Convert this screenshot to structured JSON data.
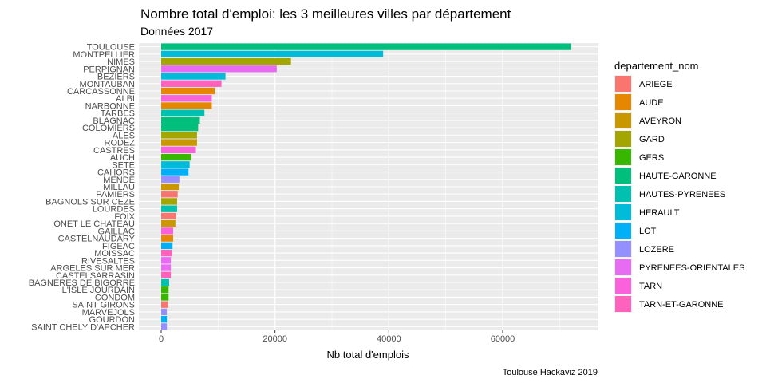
{
  "chart_data": {
    "type": "bar",
    "orientation": "horizontal",
    "title": "Nombre total d'emploi: les 3 meilleures villes par département",
    "subtitle": "Données 2017",
    "xlabel": "Nb total d'emplois",
    "ylabel": "",
    "caption": "Toulouse Hackaviz 2019",
    "xlim": [
      0,
      76000
    ],
    "xticks": [
      0,
      20000,
      40000,
      60000
    ],
    "xtick_labels": [
      "0",
      "20000",
      "40000",
      "60000"
    ],
    "grid": true,
    "legend_position": "right",
    "legend_title": "departement_nom",
    "legend": [
      {
        "name": "ARIEGE",
        "color": "#F8766D"
      },
      {
        "name": "AUDE",
        "color": "#E58700"
      },
      {
        "name": "AVEYRON",
        "color": "#C99800"
      },
      {
        "name": "GARD",
        "color": "#A3A500"
      },
      {
        "name": "GERS",
        "color": "#39B600"
      },
      {
        "name": "HAUTE-GARONNE",
        "color": "#00BF7D"
      },
      {
        "name": "HAUTES-PYRENEES",
        "color": "#00C0AF"
      },
      {
        "name": "HERAULT",
        "color": "#00BCD8"
      },
      {
        "name": "LOT",
        "color": "#00B0F6"
      },
      {
        "name": "LOZERE",
        "color": "#9590FF"
      },
      {
        "name": "PYRENEES-ORIENTALES",
        "color": "#E76BF3"
      },
      {
        "name": "TARN",
        "color": "#FA62DB"
      },
      {
        "name": "TARN-ET-GARONNE",
        "color": "#FF62BC"
      }
    ],
    "bars": [
      {
        "city": "TOULOUSE",
        "dept": "HAUTE-GARONNE",
        "value": 72000
      },
      {
        "city": "MONTPELLIER",
        "dept": "HERAULT",
        "value": 39000
      },
      {
        "city": "NIMES",
        "dept": "GARD",
        "value": 22800
      },
      {
        "city": "PERPIGNAN",
        "dept": "PYRENEES-ORIENTALES",
        "value": 20300
      },
      {
        "city": "BEZIERS",
        "dept": "HERAULT",
        "value": 11300
      },
      {
        "city": "MONTAUBAN",
        "dept": "TARN-ET-GARONNE",
        "value": 10600
      },
      {
        "city": "CARCASSONNE",
        "dept": "AUDE",
        "value": 9400
      },
      {
        "city": "ALBI",
        "dept": "TARN",
        "value": 8900
      },
      {
        "city": "NARBONNE",
        "dept": "AUDE",
        "value": 8900
      },
      {
        "city": "TARBES",
        "dept": "HAUTES-PYRENEES",
        "value": 7600
      },
      {
        "city": "BLAGNAC",
        "dept": "HAUTE-GARONNE",
        "value": 6800
      },
      {
        "city": "COLOMIERS",
        "dept": "HAUTE-GARONNE",
        "value": 6500
      },
      {
        "city": "ALES",
        "dept": "GARD",
        "value": 6300
      },
      {
        "city": "RODEZ",
        "dept": "AVEYRON",
        "value": 6300
      },
      {
        "city": "CASTRES",
        "dept": "TARN",
        "value": 6100
      },
      {
        "city": "AUCH",
        "dept": "GERS",
        "value": 5300
      },
      {
        "city": "SETE",
        "dept": "HERAULT",
        "value": 5000
      },
      {
        "city": "CAHORS",
        "dept": "LOT",
        "value": 4800
      },
      {
        "city": "MENDE",
        "dept": "LOZERE",
        "value": 3200
      },
      {
        "city": "MILLAU",
        "dept": "AVEYRON",
        "value": 3100
      },
      {
        "city": "PAMIERS",
        "dept": "ARIEGE",
        "value": 2900
      },
      {
        "city": "BAGNOLS SUR CEZE",
        "dept": "GARD",
        "value": 2800
      },
      {
        "city": "LOURDES",
        "dept": "HAUTES-PYRENEES",
        "value": 2800
      },
      {
        "city": "FOIX",
        "dept": "ARIEGE",
        "value": 2600
      },
      {
        "city": "ONET LE CHATEAU",
        "dept": "AVEYRON",
        "value": 2500
      },
      {
        "city": "GAILLAC",
        "dept": "TARN",
        "value": 2100
      },
      {
        "city": "CASTELNAUDARY",
        "dept": "AUDE",
        "value": 2100
      },
      {
        "city": "FIGEAC",
        "dept": "LOT",
        "value": 2000
      },
      {
        "city": "MOISSAC",
        "dept": "TARN-ET-GARONNE",
        "value": 1900
      },
      {
        "city": "RIVESALTES",
        "dept": "PYRENEES-ORIENTALES",
        "value": 1700
      },
      {
        "city": "ARGELES SUR MER",
        "dept": "PYRENEES-ORIENTALES",
        "value": 1700
      },
      {
        "city": "CASTELSARRASIN",
        "dept": "TARN-ET-GARONNE",
        "value": 1700
      },
      {
        "city": "BAGNERES DE BIGORRE",
        "dept": "HAUTES-PYRENEES",
        "value": 1400
      },
      {
        "city": "L'ISLE JOURDAIN",
        "dept": "GERS",
        "value": 1300
      },
      {
        "city": "CONDOM",
        "dept": "GERS",
        "value": 1300
      },
      {
        "city": "SAINT GIRONS",
        "dept": "ARIEGE",
        "value": 1200
      },
      {
        "city": "MARVEJOLS",
        "dept": "LOZERE",
        "value": 1000
      },
      {
        "city": "GOURDON",
        "dept": "LOT",
        "value": 1000
      },
      {
        "city": "SAINT CHELY D'APCHER",
        "dept": "LOZERE",
        "value": 1000
      }
    ]
  }
}
